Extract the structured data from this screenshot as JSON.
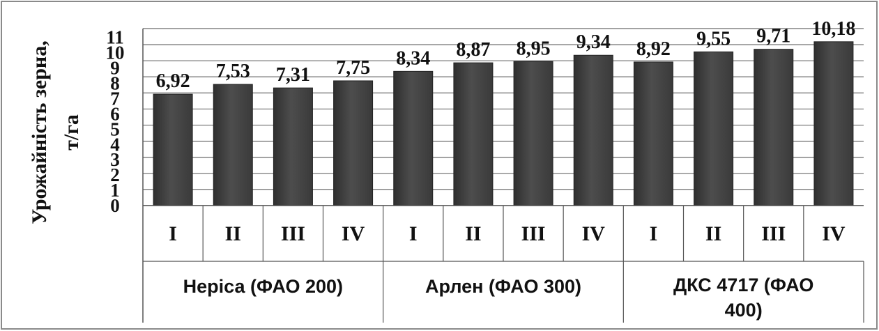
{
  "chart_data": {
    "type": "bar",
    "ylabel": [
      "Урожайність зерна,",
      "т/га"
    ],
    "ylim": [
      0,
      10
    ],
    "yticks": [
      "0",
      "1",
      "2",
      "3",
      "4",
      "5",
      "6",
      "7",
      "8",
      "9",
      "10",
      "11"
    ],
    "grid": true,
    "categories": [
      "I",
      "II",
      "III",
      "IV",
      "I",
      "II",
      "III",
      "IV",
      "I",
      "II",
      "III",
      "IV"
    ],
    "groups": [
      {
        "label": [
          "Неріса (ФАО 200)"
        ],
        "start": 0,
        "count": 4
      },
      {
        "label": [
          "Арлен (ФАО 300)"
        ],
        "start": 4,
        "count": 4
      },
      {
        "label": [
          "ДКС 4717 (ФАО",
          "400)"
        ],
        "start": 8,
        "count": 4
      }
    ],
    "values": [
      6.92,
      7.53,
      7.31,
      7.75,
      8.34,
      8.87,
      8.95,
      9.34,
      8.92,
      9.55,
      9.71,
      10.18
    ],
    "data_labels": [
      "6,92",
      "7,53",
      "7,31",
      "7,75",
      "8,34",
      "8,87",
      "8,95",
      "9,34",
      "8,92",
      "9,55",
      "9,71",
      "10,18"
    ],
    "bar_color": "#4d4d4d",
    "legend": "none"
  }
}
